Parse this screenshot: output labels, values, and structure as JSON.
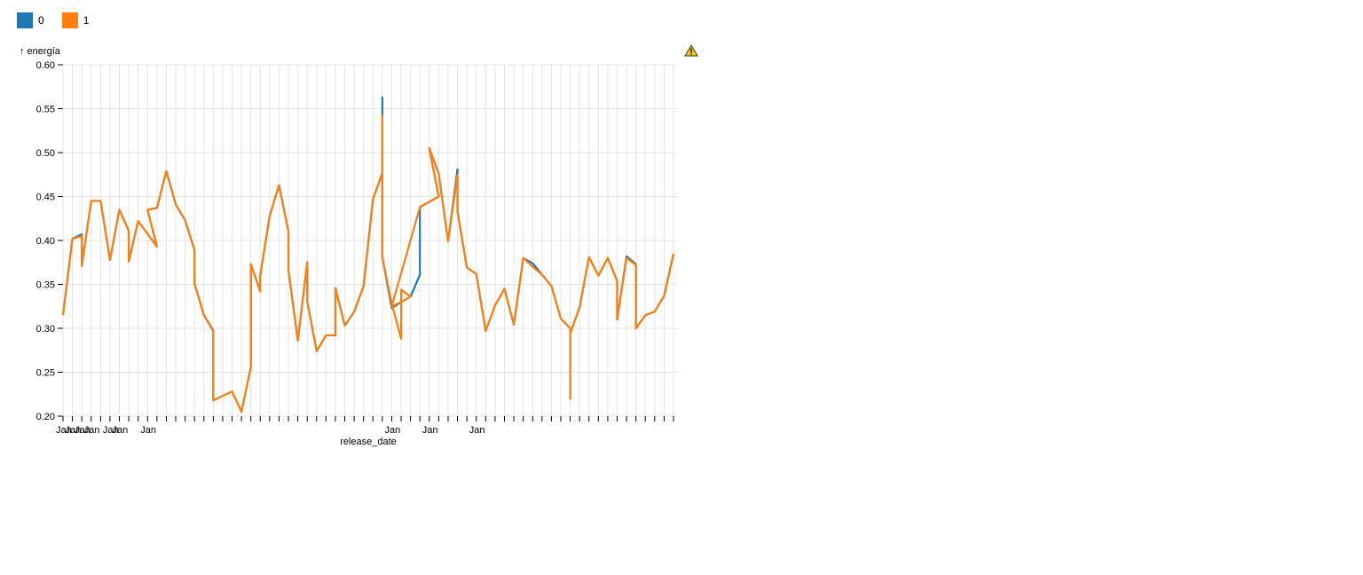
{
  "chart_data": {
    "type": "line",
    "ylabel": "↑ energía",
    "xlabel": "release_date",
    "ylim": [
      0.2,
      0.6
    ],
    "yticks": [
      "0.20",
      "0.25",
      "0.30",
      "0.35",
      "0.40",
      "0.45",
      "0.50",
      "0.55",
      "0.60"
    ],
    "grid": true,
    "legend_position": "top-left",
    "x_tick_labels": [
      {
        "label": "Jan",
        "index": 0
      },
      {
        "label": "Jan",
        "index": 1
      },
      {
        "label": "Jan",
        "index": 2
      },
      {
        "label": "Jan",
        "index": 3
      },
      {
        "label": "Jan",
        "index": 5
      },
      {
        "label": "Jan",
        "index": 6
      },
      {
        "label": "Jan",
        "index": 9
      },
      {
        "label": "Jan",
        "index": 35
      },
      {
        "label": "Jan",
        "index": 39
      },
      {
        "label": "Jan",
        "index": 44
      }
    ],
    "x_tick_count": 65,
    "series": [
      {
        "name": "0",
        "color": "#1f77b4",
        "points": [
          [
            0,
            0.315
          ],
          [
            1,
            0.402
          ],
          [
            2,
            0.407
          ],
          [
            2,
            0.371
          ],
          [
            3,
            0.445
          ],
          [
            4,
            0.445
          ],
          [
            5,
            0.378
          ],
          [
            6,
            0.435
          ],
          [
            7,
            0.411
          ],
          [
            7,
            0.376
          ],
          [
            8,
            0.422
          ],
          [
            10,
            0.393
          ],
          [
            9,
            0.435
          ],
          [
            10,
            0.437
          ],
          [
            11,
            0.479
          ],
          [
            12,
            0.441
          ],
          [
            13,
            0.423
          ],
          [
            14,
            0.389
          ],
          [
            14,
            0.351
          ],
          [
            15,
            0.315
          ],
          [
            16,
            0.297
          ],
          [
            16,
            0.218
          ],
          [
            18,
            0.228
          ],
          [
            19,
            0.205
          ],
          [
            20,
            0.256
          ],
          [
            20,
            0.373
          ],
          [
            21,
            0.342
          ],
          [
            21,
            0.36
          ],
          [
            22,
            0.428
          ],
          [
            23,
            0.463
          ],
          [
            24,
            0.41
          ],
          [
            24,
            0.366
          ],
          [
            25,
            0.286
          ],
          [
            26,
            0.375
          ],
          [
            26,
            0.331
          ],
          [
            27,
            0.274
          ],
          [
            28,
            0.292
          ],
          [
            29,
            0.292
          ],
          [
            29,
            0.346
          ],
          [
            30,
            0.303
          ],
          [
            31,
            0.319
          ],
          [
            32,
            0.348
          ],
          [
            33,
            0.447
          ],
          [
            34,
            0.477
          ],
          [
            34,
            0.563
          ],
          [
            34,
            0.381
          ],
          [
            35,
            0.323
          ],
          [
            36,
            0.33
          ],
          [
            36,
            0.344
          ],
          [
            37,
            0.336
          ],
          [
            38,
            0.361
          ],
          [
            38,
            0.438
          ],
          [
            40,
            0.45
          ],
          [
            39,
            0.505
          ],
          [
            40,
            0.476
          ],
          [
            41,
            0.399
          ],
          [
            42,
            0.481
          ],
          [
            42,
            0.433
          ],
          [
            43,
            0.369
          ],
          [
            44,
            0.362
          ],
          [
            45,
            0.297
          ],
          [
            46,
            0.326
          ],
          [
            47,
            0.345
          ],
          [
            48,
            0.304
          ],
          [
            49,
            0.38
          ],
          [
            50,
            0.374
          ],
          [
            51,
            0.361
          ],
          [
            52,
            0.348
          ],
          [
            53,
            0.311
          ],
          [
            54,
            0.3
          ],
          [
            54,
            0.22
          ],
          [
            54,
            0.294
          ],
          [
            55,
            0.324
          ],
          [
            56,
            0.381
          ],
          [
            57,
            0.36
          ],
          [
            58,
            0.38
          ],
          [
            59,
            0.354
          ],
          [
            59,
            0.31
          ],
          [
            60,
            0.382
          ],
          [
            61,
            0.373
          ],
          [
            61,
            0.3
          ],
          [
            62,
            0.315
          ],
          [
            63,
            0.319
          ],
          [
            64,
            0.337
          ],
          [
            65,
            0.385
          ]
        ]
      },
      {
        "name": "1",
        "color": "#ff7f0e",
        "points": [
          [
            0,
            0.315
          ],
          [
            1,
            0.402
          ],
          [
            2,
            0.405
          ],
          [
            2,
            0.371
          ],
          [
            3,
            0.445
          ],
          [
            4,
            0.445
          ],
          [
            5,
            0.378
          ],
          [
            6,
            0.435
          ],
          [
            7,
            0.411
          ],
          [
            7,
            0.376
          ],
          [
            8,
            0.422
          ],
          [
            10,
            0.393
          ],
          [
            9,
            0.435
          ],
          [
            10,
            0.437
          ],
          [
            11,
            0.479
          ],
          [
            12,
            0.441
          ],
          [
            13,
            0.423
          ],
          [
            14,
            0.389
          ],
          [
            14,
            0.351
          ],
          [
            15,
            0.315
          ],
          [
            16,
            0.298
          ],
          [
            16,
            0.218
          ],
          [
            18,
            0.228
          ],
          [
            19,
            0.205
          ],
          [
            20,
            0.256
          ],
          [
            20,
            0.373
          ],
          [
            21,
            0.342
          ],
          [
            21,
            0.36
          ],
          [
            22,
            0.428
          ],
          [
            23,
            0.463
          ],
          [
            24,
            0.41
          ],
          [
            24,
            0.366
          ],
          [
            25,
            0.286
          ],
          [
            26,
            0.375
          ],
          [
            26,
            0.331
          ],
          [
            27,
            0.274
          ],
          [
            28,
            0.292
          ],
          [
            29,
            0.292
          ],
          [
            29,
            0.346
          ],
          [
            30,
            0.303
          ],
          [
            31,
            0.319
          ],
          [
            32,
            0.348
          ],
          [
            33,
            0.447
          ],
          [
            34,
            0.477
          ],
          [
            34,
            0.542
          ],
          [
            34,
            0.381
          ],
          [
            35,
            0.328
          ],
          [
            36,
            0.288
          ],
          [
            36,
            0.344
          ],
          [
            37,
            0.336
          ],
          [
            36,
            0.33
          ],
          [
            35,
            0.325
          ],
          [
            38,
            0.438
          ],
          [
            40,
            0.45
          ],
          [
            39,
            0.505
          ],
          [
            40,
            0.476
          ],
          [
            41,
            0.399
          ],
          [
            42,
            0.475
          ],
          [
            42,
            0.433
          ],
          [
            43,
            0.369
          ],
          [
            44,
            0.362
          ],
          [
            45,
            0.297
          ],
          [
            46,
            0.326
          ],
          [
            47,
            0.345
          ],
          [
            48,
            0.304
          ],
          [
            49,
            0.38
          ],
          [
            50,
            0.37
          ],
          [
            51,
            0.361
          ],
          [
            52,
            0.348
          ],
          [
            53,
            0.311
          ],
          [
            54,
            0.3
          ],
          [
            54,
            0.22
          ],
          [
            54,
            0.294
          ],
          [
            55,
            0.324
          ],
          [
            56,
            0.381
          ],
          [
            57,
            0.36
          ],
          [
            58,
            0.38
          ],
          [
            59,
            0.354
          ],
          [
            59,
            0.31
          ],
          [
            60,
            0.38
          ],
          [
            61,
            0.372
          ],
          [
            61,
            0.3
          ],
          [
            62,
            0.315
          ],
          [
            63,
            0.319
          ],
          [
            64,
            0.337
          ],
          [
            65,
            0.385
          ]
        ]
      }
    ]
  }
}
